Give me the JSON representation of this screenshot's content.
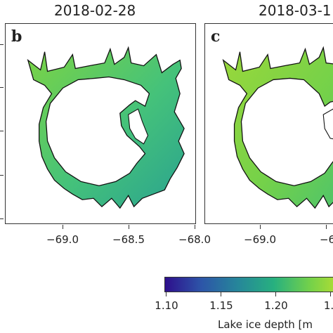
{
  "panels": [
    {
      "title": "2018-02-28",
      "letter": "b"
    },
    {
      "title": "2018-03-1",
      "letter": "c"
    }
  ],
  "x_ticks": [
    "−69.0",
    "−68.5",
    "−68.0",
    "−69.0",
    "−6"
  ],
  "colorbar": {
    "ticks": [
      "1.10",
      "1.15",
      "1.20",
      "1."
    ],
    "label": "Lake ice depth [m",
    "colors": [
      "#2d0f8c",
      "#2d55a8",
      "#26869a",
      "#27b07f",
      "#74d14a",
      "#c3e12c"
    ]
  },
  "colors": {
    "panel_b_lake": "#45c27a",
    "panel_c_lake": "#86d23e",
    "shore_outline": "#111111"
  }
}
